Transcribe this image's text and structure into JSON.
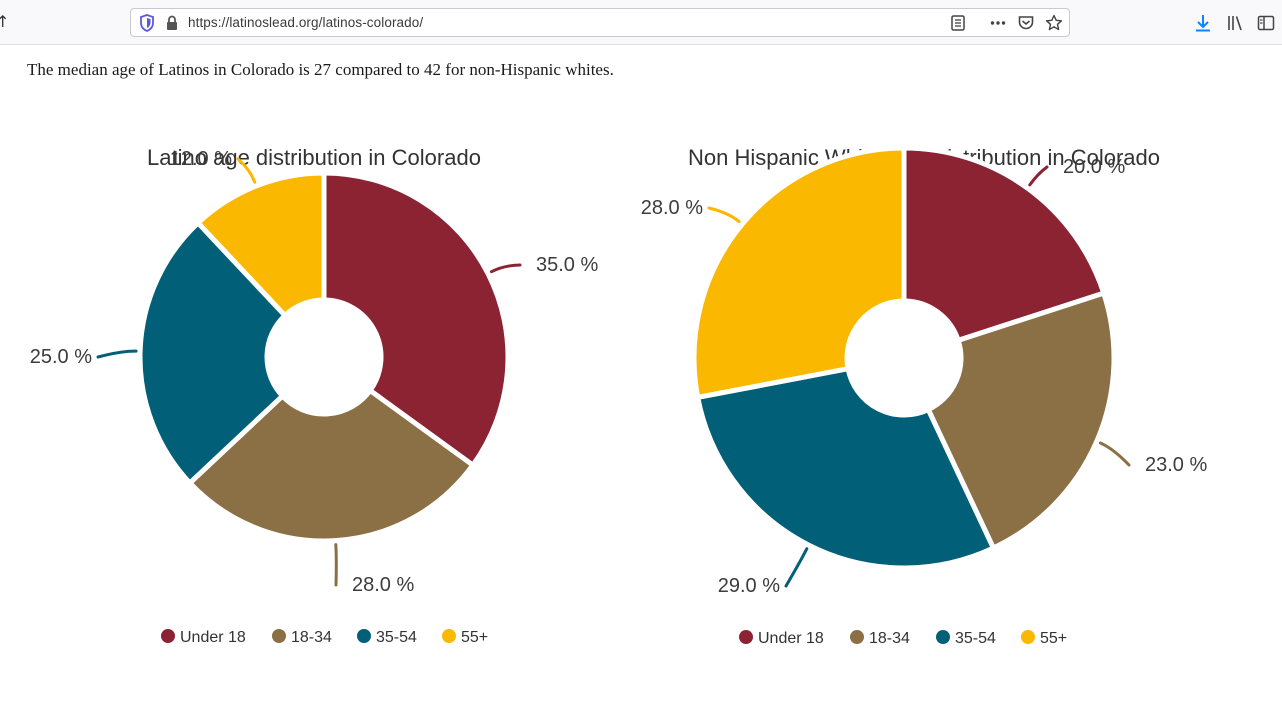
{
  "browser": {
    "url": "https://latinoslead.org/latinos-colorado/"
  },
  "article": {
    "intro": "The median age of Latinos in Colorado is 27 compared to 42 for non-Hispanic whites."
  },
  "colors": {
    "under_18": "#8b2332",
    "age_18_34": "#8b7045",
    "age_35_54": "#025f78",
    "age_55_plus": "#fbb800"
  },
  "chart_data": [
    {
      "type": "pie",
      "title": "Latino age distribution in Colorado",
      "categories": [
        "Under 18",
        "18-34",
        "35-54",
        "55+"
      ],
      "values": [
        35.0,
        28.0,
        25.0,
        12.0
      ],
      "labels": [
        "35.0 %",
        "28.0 %",
        "25.0 %",
        "12.0 %"
      ],
      "legend": "bottom"
    },
    {
      "type": "pie",
      "title": "Non Hispanic White Age Distribution in Colorado",
      "categories": [
        "Under 18",
        "18-34",
        "35-54",
        "55+"
      ],
      "values": [
        20.0,
        23.0,
        29.0,
        28.0
      ],
      "labels": [
        "20.0 %",
        "23.0 %",
        "29.0 %",
        "28.0 %"
      ],
      "legend": "bottom"
    }
  ]
}
